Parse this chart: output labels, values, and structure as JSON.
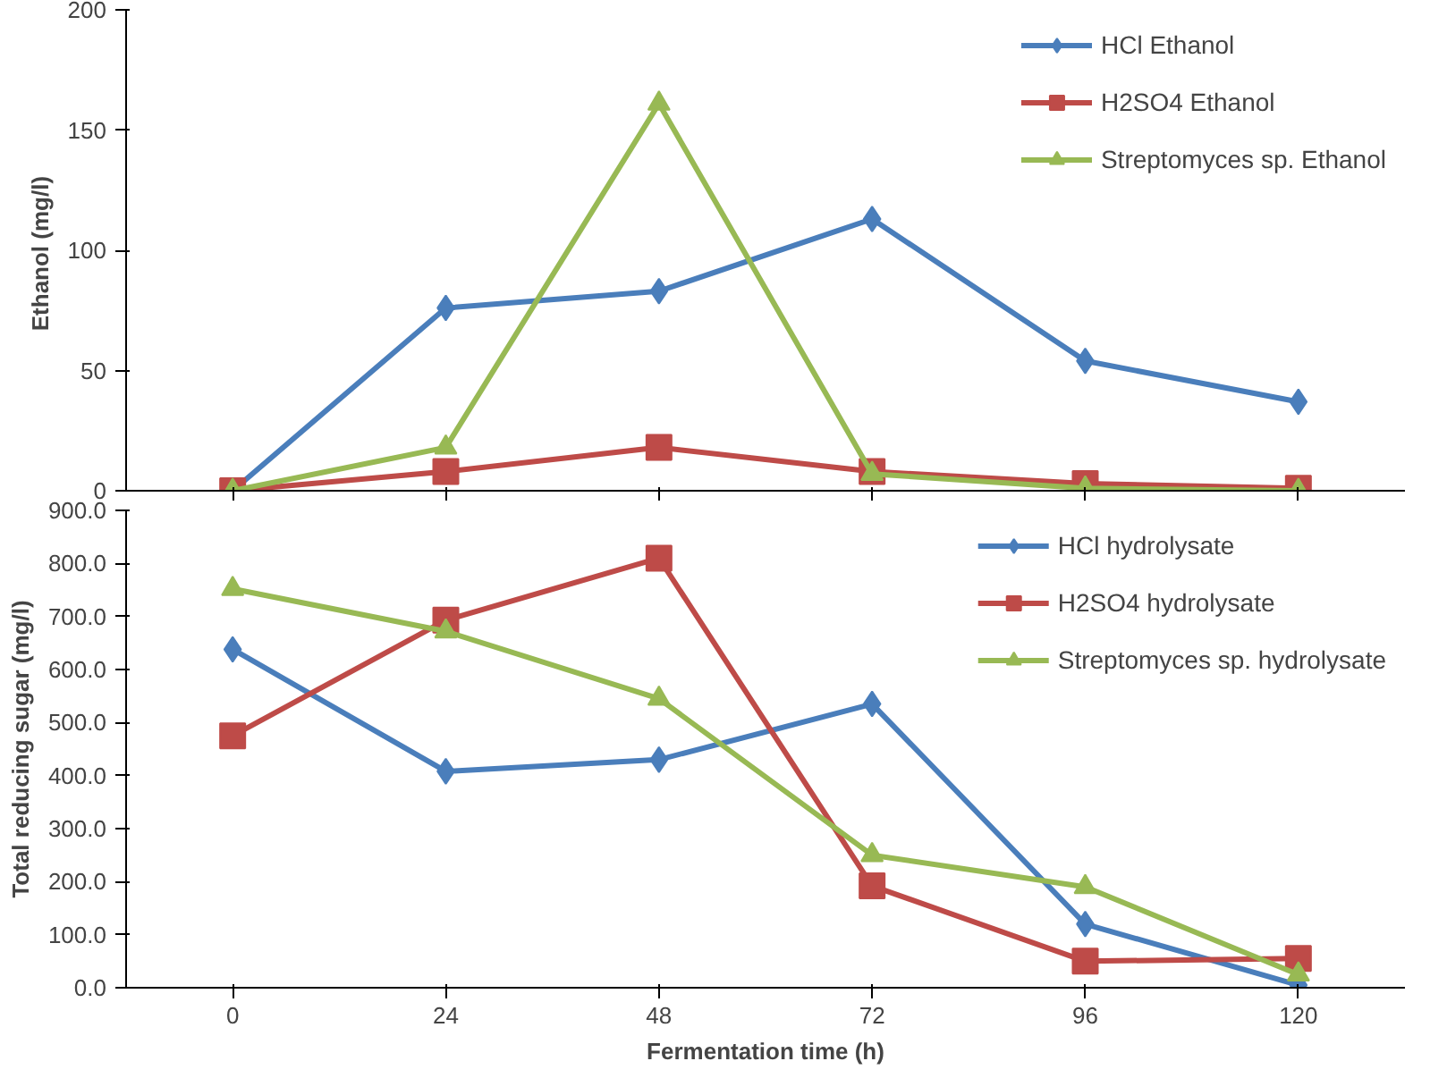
{
  "chart_data": [
    {
      "type": "line",
      "ylabel": "Ethanol  (mg/l)",
      "categories": [
        "0",
        "24",
        "48",
        "72",
        "96",
        "120"
      ],
      "tick_labels": "y",
      "ylim": [
        0,
        200
      ],
      "yticks": [
        0,
        50,
        100,
        150,
        200
      ],
      "grid": false,
      "legend": "top right",
      "series": [
        {
          "name": "HCl Ethanol",
          "color": "#4a7ebb",
          "marker": "diamond",
          "values": [
            0,
            76,
            83,
            113,
            54,
            37
          ]
        },
        {
          "name": "H2SO4 Ethanol",
          "color": "#be4b48",
          "marker": "square",
          "values": [
            0,
            8,
            18,
            8,
            3,
            1
          ]
        },
        {
          "name": "Streptomyces sp. Ethanol",
          "color": "#98b954",
          "marker": "triangle",
          "values": [
            0,
            18,
            161,
            7,
            1,
            0
          ]
        }
      ]
    },
    {
      "type": "line",
      "xlabel": "Fermentation time (h)",
      "ylabel": "Total reducing sugar (mg/l)",
      "categories": [
        "0",
        "24",
        "48",
        "72",
        "96",
        "120"
      ],
      "ylim": [
        0,
        900
      ],
      "grid": false,
      "legend": "top right",
      "yticks": [
        {
          "value": 0,
          "label": "0.0"
        },
        {
          "value": 100,
          "label": "100.0"
        },
        {
          "value": 200,
          "label": "200.0"
        },
        {
          "value": 300,
          "label": "300.0"
        },
        {
          "value": 400,
          "label": "400.0"
        },
        {
          "value": 500,
          "label": "500.0"
        },
        {
          "value": 600,
          "label": "600.0"
        },
        {
          "value": 700,
          "label": "700.0"
        },
        {
          "value": 800,
          "label": "800.0"
        },
        {
          "value": 900,
          "label": "900.0"
        }
      ],
      "series": [
        {
          "name": "HCl hydrolysate",
          "color": "#4a7ebb",
          "marker": "diamond",
          "values": [
            638,
            408,
            430,
            535,
            120,
            5
          ]
        },
        {
          "name": "H2SO4 hydrolysate",
          "color": "#be4b48",
          "marker": "square",
          "values": [
            475,
            693,
            810,
            192,
            50,
            55
          ]
        },
        {
          "name": "Streptomyces sp. hydrolysate",
          "color": "#98b954",
          "marker": "triangle",
          "values": [
            752,
            672,
            545,
            250,
            190,
            25
          ]
        }
      ]
    }
  ]
}
